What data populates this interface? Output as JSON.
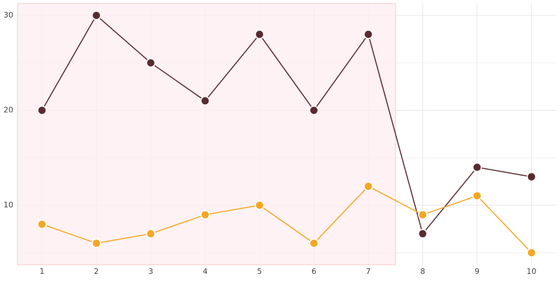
{
  "chart_data": {
    "type": "line",
    "x": [
      1,
      2,
      3,
      4,
      5,
      6,
      7,
      8,
      9,
      10
    ],
    "series": [
      {
        "color": "#5a2a30",
        "values": [
          20,
          30,
          25,
          21,
          28,
          20,
          28,
          7,
          14,
          13
        ]
      },
      {
        "color": "#f5a623",
        "values": [
          8,
          6,
          7,
          9,
          10,
          6,
          12,
          9,
          11,
          5
        ]
      }
    ],
    "xlim": [
      0.55,
      10.46
    ],
    "xticks": [
      1,
      2,
      3,
      4,
      5,
      6,
      7,
      8,
      9,
      10
    ],
    "ylim": [
      3.73,
      31.25
    ],
    "yticks": [
      10,
      20,
      30
    ],
    "minor_yticks": [
      5,
      15,
      25
    ],
    "grid": true,
    "highlight_xlim": [
      0.55,
      7.5
    ],
    "highlight_color": "#fdeef0",
    "highlight_border": "#f8c8cc"
  }
}
